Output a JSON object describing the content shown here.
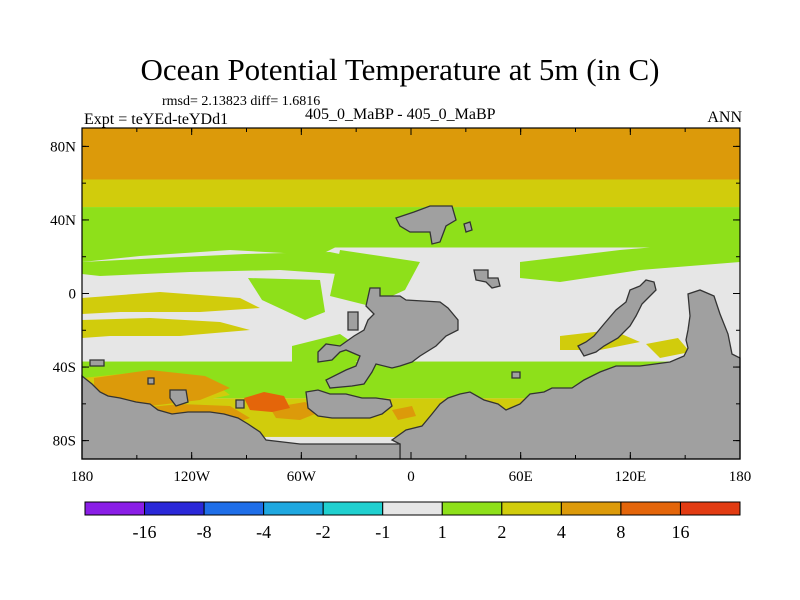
{
  "header": {
    "title": "Ocean Potential Temperature at 5m (in C)",
    "stats": "rmsd= 2.13823 diff= 1.6816",
    "expt": "Expt = teYEd-teYDd1",
    "case": "405_0_MaBP - 405_0_MaBP",
    "season": "ANN"
  },
  "chart_data": {
    "type": "heatmap",
    "title": "Ocean Potential Temperature at 5m (in C)",
    "xlabel": "",
    "ylabel": "",
    "x_ticks": [
      {
        "lon": -180,
        "label": "180"
      },
      {
        "lon": -120,
        "label": "120W"
      },
      {
        "lon": -60,
        "label": "60W"
      },
      {
        "lon": 0,
        "label": "0"
      },
      {
        "lon": 60,
        "label": "60E"
      },
      {
        "lon": 120,
        "label": "120E"
      },
      {
        "lon": 180,
        "label": "180"
      }
    ],
    "y_ticks": [
      {
        "lat": 80,
        "label": "80N"
      },
      {
        "lat": 40,
        "label": "40N"
      },
      {
        "lat": 0,
        "label": "0"
      },
      {
        "lat": -40,
        "label": "40S"
      },
      {
        "lat": -80,
        "label": "80S"
      }
    ],
    "xlim": [
      -180,
      180
    ],
    "ylim": [
      -90,
      90
    ],
    "colorbar": {
      "levels": [
        "-16",
        "-8",
        "-4",
        "-2",
        "-1",
        "1",
        "2",
        "4",
        "8",
        "16"
      ],
      "colors": [
        "#8a1ee6",
        "#2a28d8",
        "#1f6ee8",
        "#1fa8e0",
        "#20d0cf",
        "#e6e6e6",
        "#8ee01a",
        "#d1cc0c",
        "#dc9a0a",
        "#e4650a",
        "#e23b12"
      ]
    },
    "bands": [
      {
        "lat_min": 62,
        "lat_max": 90,
        "color": "#dc9a0a",
        "range": "4 to 8"
      },
      {
        "lat_min": 47,
        "lat_max": 62,
        "color": "#d1cc0c",
        "range": "2 to 4"
      },
      {
        "lat_min": 25,
        "lat_max": 47,
        "color": "#8ee01a",
        "range": "1 to 2"
      },
      {
        "lat_min": -37,
        "lat_max": 25,
        "color": "#e6e6e6",
        "range": "-1 to 1"
      },
      {
        "lat_min": -57,
        "lat_max": -37,
        "color": "#8ee01a",
        "range": "1 to 2"
      },
      {
        "lat_min": -78,
        "lat_max": -57,
        "color": "#d1cc0c",
        "range": "2 to 4"
      }
    ],
    "land_color": "#a0a0a0"
  }
}
